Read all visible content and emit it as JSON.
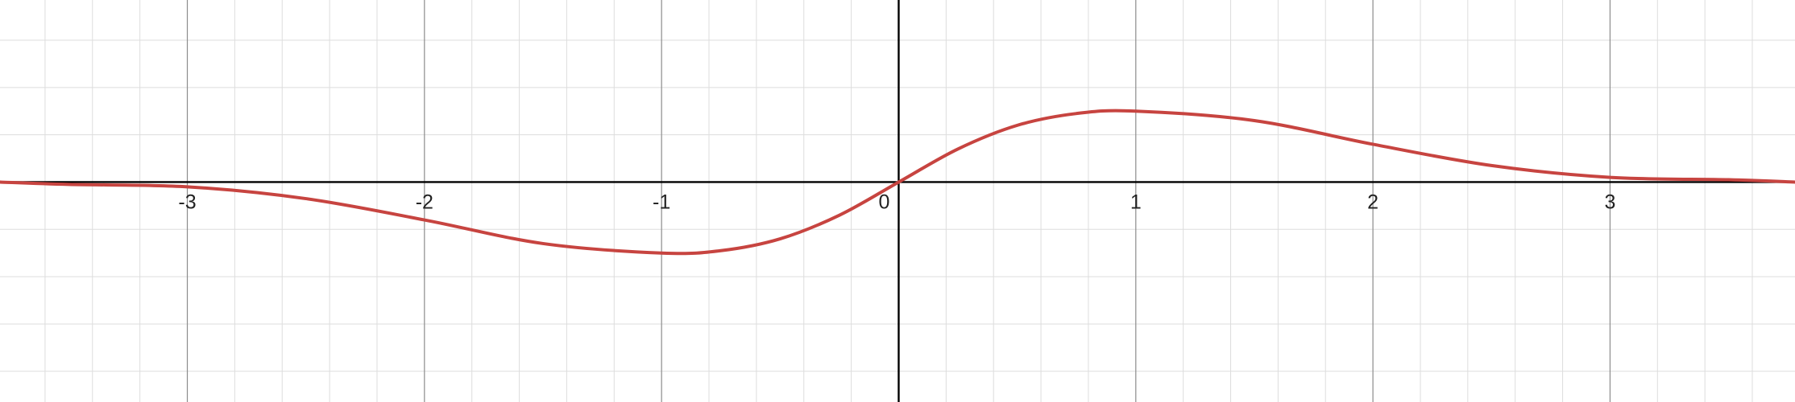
{
  "chart_data": {
    "type": "line",
    "title": "",
    "xlabel": "",
    "ylabel": "",
    "xlim": [
      -3.79,
      3.78
    ],
    "ylim": [
      -0.93,
      0.77
    ],
    "grid": true,
    "x_ticks": [
      -3,
      -2,
      -1,
      0,
      1,
      2,
      3
    ],
    "x_tick_labels": [
      "-3",
      "-2",
      "-1",
      "0",
      "1",
      "2",
      "3"
    ],
    "series": [
      {
        "x": [
          -3.79,
          -3.5,
          -3.0,
          -2.5,
          -2.0,
          -1.5,
          -1.0,
          -0.75,
          -0.5,
          -0.25,
          0.0,
          0.25,
          0.5,
          0.75,
          1.0,
          1.5,
          2.0,
          2.5,
          3.0,
          3.5,
          3.78
        ],
        "y": [
          -0.0,
          -0.01,
          -0.02,
          -0.07,
          -0.16,
          -0.26,
          -0.3,
          -0.29,
          -0.24,
          -0.14,
          0.0,
          0.14,
          0.24,
          0.29,
          0.3,
          0.26,
          0.16,
          0.07,
          0.02,
          0.01,
          0.0
        ],
        "color": "#c74440"
      }
    ]
  },
  "colors": {
    "curve": "#c74440",
    "axis": "#000000",
    "major_grid": "#8c8c8c",
    "minor_grid": "#dddddd"
  }
}
